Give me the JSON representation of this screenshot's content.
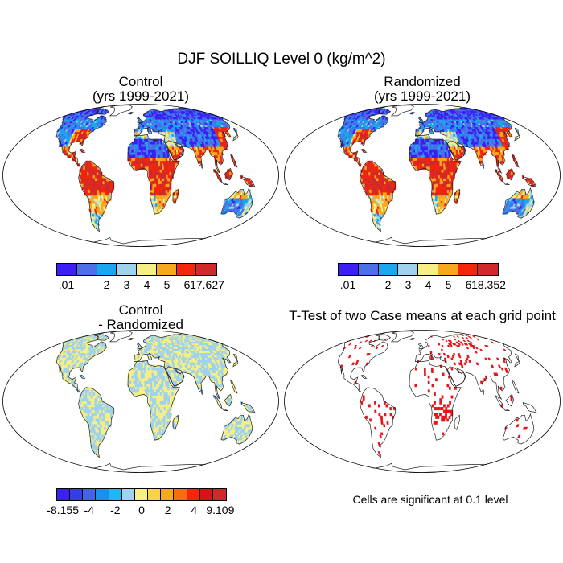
{
  "title": "DJF SOILLIQ Level 0 (kg/m^2)",
  "colors": {
    "land_bg": "#ffffff",
    "coast": "#222222",
    "sig": "#e8141a"
  },
  "chart_data": [
    {
      "type": "heatmap",
      "panel": "top-left",
      "title_line1": "Control",
      "title_line2": "(yrs 1999-2021)",
      "colorbar": {
        "colors": [
          "#3b1ff5",
          "#4a6fe6",
          "#1aa7ef",
          "#9ed2ed",
          "#f7ee85",
          "#f7a81e",
          "#f3260c",
          "#cf2a2a"
        ],
        "tick_labels": [
          ".01",
          "",
          "2",
          "3",
          "4",
          "5",
          "6",
          "17.627"
        ],
        "min": 0.01,
        "max": 17.627
      }
    },
    {
      "type": "heatmap",
      "panel": "top-right",
      "title_line1": "Randomized",
      "title_line2": "(yrs 1999-2021)",
      "colorbar": {
        "colors": [
          "#3b1ff5",
          "#4a6fe6",
          "#1aa7ef",
          "#9ed2ed",
          "#f7ee85",
          "#f7a81e",
          "#f3260c",
          "#cf2a2a"
        ],
        "tick_labels": [
          ".01",
          "",
          "2",
          "3",
          "4",
          "5",
          "6",
          "18.352"
        ],
        "min": 0.01,
        "max": 18.352
      }
    },
    {
      "type": "heatmap",
      "panel": "bottom-left",
      "title_line1": "Control",
      "title_line2": "- Randomized",
      "colorbar": {
        "colors": [
          "#3b1ff5",
          "#3240e0",
          "#3f64e4",
          "#1c8fe8",
          "#22b6f0",
          "#9fd3eb",
          "#f7ee85",
          "#f7d24b",
          "#f7a81e",
          "#f46e14",
          "#f3260c",
          "#d3151b",
          "#cf2a2a"
        ],
        "tick_labels": [
          "-8.155",
          "",
          "-4",
          "",
          "-2",
          "",
          "0",
          "",
          "2",
          "",
          "4",
          "",
          "9.109"
        ],
        "min": -8.155,
        "max": 9.109
      }
    },
    {
      "type": "heatmap",
      "panel": "bottom-right",
      "title": "T-Test of two Case means at each grid point",
      "note": "Cells are significant at 0.1 level"
    }
  ]
}
